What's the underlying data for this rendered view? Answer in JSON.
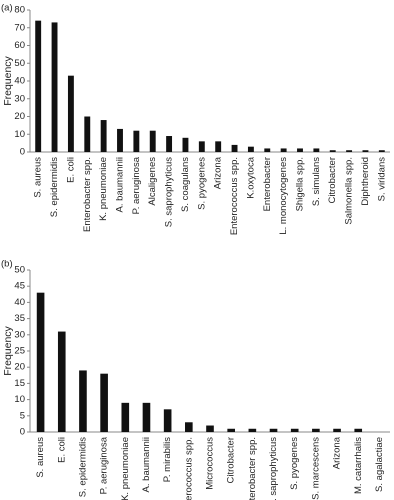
{
  "chart_data": [
    {
      "type": "bar",
      "label": "(a)",
      "ylabel": "Frequency",
      "color": "#111111",
      "categories": [
        "S. aureus",
        "S. epidermidis",
        "E. coli",
        "Enterobacter spp.",
        "K. pneumoniae",
        "A. baumannii",
        "P. aeruginosa",
        "Alcaligenes",
        "S. saprophyticus",
        "S. coagulans",
        "S. pyogenes",
        "Arizona",
        "Enterococcus spp.",
        "K.oxytoca",
        "Enterobacter",
        "L. monocytogenes",
        "Shigella spp.",
        "S. simulans",
        "Citrobacter",
        "Salmonella spp.",
        "Diphtheroid",
        "S. viridans"
      ],
      "values": [
        74,
        73,
        43,
        20,
        18,
        13,
        12,
        12,
        9,
        8,
        6,
        6,
        4,
        3,
        2,
        2,
        2,
        2,
        1,
        1,
        1,
        1
      ],
      "ylim": [
        0,
        80
      ],
      "yticks": [
        0,
        10,
        20,
        30,
        40,
        50,
        60,
        70,
        80
      ],
      "grid": false
    },
    {
      "type": "bar",
      "label": "(b)",
      "ylabel": "Frequency",
      "color": "#111111",
      "categories": [
        "S. aureus",
        "E. coli",
        "S. epidermidis",
        "P. aeruginosa",
        "K. pneumoniae",
        "A. baumannii",
        "P. mirabilis",
        "Enterococcus spp.",
        "Micrococcus",
        "Citrobacter",
        "Enterobacter spp.",
        "S. saprophyticus",
        "S. pyogenes",
        "S. marcescens",
        "Arizona",
        "M. catarrhalis",
        "S. agalactiae"
      ],
      "values": [
        43,
        31,
        19,
        18,
        9,
        9,
        7,
        3,
        2,
        1,
        1,
        1,
        1,
        1,
        1,
        1,
        0
      ],
      "ylim": [
        0,
        50
      ],
      "yticks": [
        0,
        5,
        10,
        15,
        20,
        25,
        30,
        35,
        40,
        45,
        50
      ],
      "grid": false
    }
  ]
}
